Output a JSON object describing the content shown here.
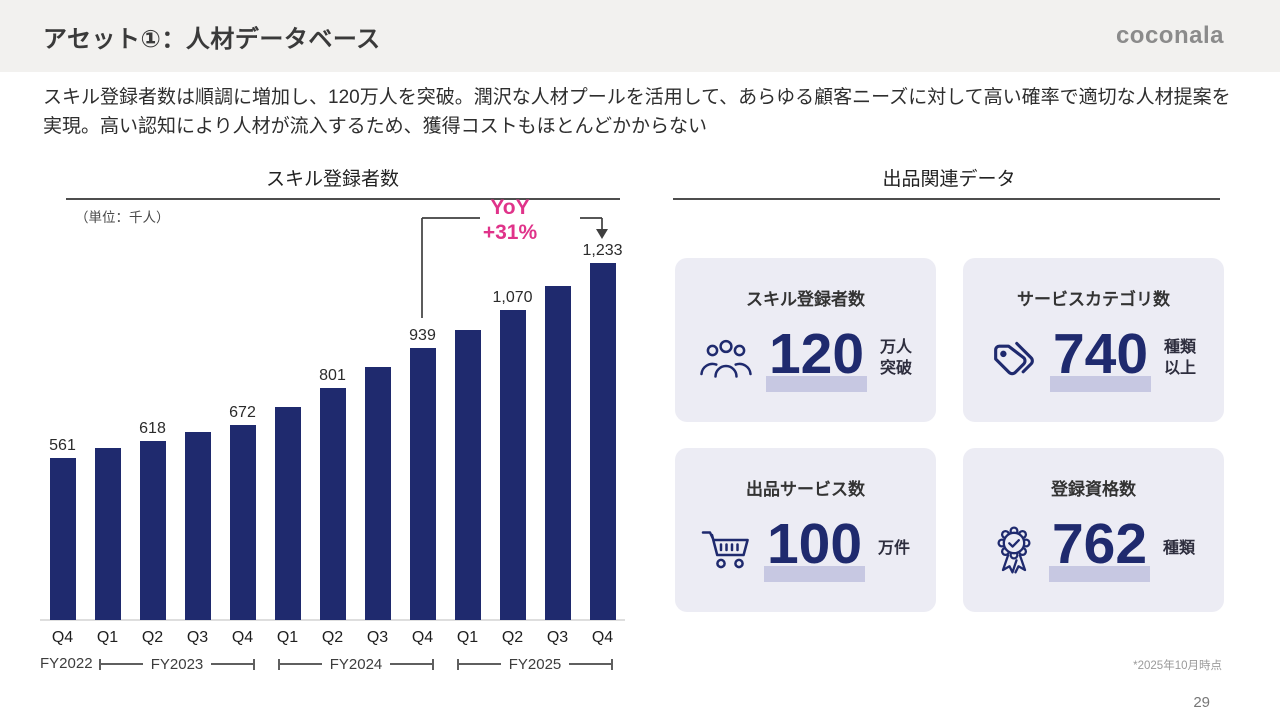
{
  "header": {
    "title": "アセット①：人材データベース",
    "logo": "coconala"
  },
  "intro": "スキル登録者数は順調に増加し、120万人を突破。潤沢な人材プールを活用して、あらゆる顧客ニーズに対して高い確率で適切な人材提案を実現。高い認知により人材が流入するため、獲得コストもほとんどかからない",
  "chart_section": {
    "title": "スキル登録者数",
    "unit_note": "（単位：千人）",
    "yoy_label": "YoY",
    "yoy_value": "+31%"
  },
  "chart_data": {
    "type": "bar",
    "title": "スキル登録者数",
    "ylabel": "千人",
    "categories": [
      "Q4",
      "Q1",
      "Q2",
      "Q3",
      "Q4",
      "Q1",
      "Q2",
      "Q3",
      "Q4",
      "Q1",
      "Q2",
      "Q3",
      "Q4"
    ],
    "fiscal_years": [
      "FY2022",
      "FY2023",
      "FY2024",
      "FY2025"
    ],
    "values": [
      561,
      595,
      618,
      650,
      672,
      735,
      801,
      875,
      939,
      1000,
      1070,
      1155,
      1233
    ],
    "value_labels": [
      "561",
      null,
      "618",
      null,
      "672",
      null,
      "801",
      null,
      "939",
      null,
      "1,070",
      null,
      "1,233"
    ],
    "estimated_indices": [
      1,
      3,
      5,
      7,
      9,
      11
    ],
    "ylim": [
      0,
      1300
    ],
    "bar_color": "#1f2a6e",
    "annotation": {
      "label": "YoY",
      "value": "+31%",
      "from": "FY2024 Q4",
      "to": "FY2025 Q4",
      "color": "#e0338a"
    },
    "grid": false,
    "legend": false
  },
  "right_panel": {
    "title": "出品関連データ",
    "cards": [
      {
        "icon": "people-group-icon",
        "title": "スキル登録者数",
        "value": "120",
        "unit_lines": [
          "万人",
          "突破"
        ]
      },
      {
        "icon": "tags-icon",
        "title": "サービスカテゴリ数",
        "value": "740",
        "unit_lines": [
          "種類",
          "以上"
        ]
      },
      {
        "icon": "cart-icon",
        "title": "出品サービス数",
        "value": "100",
        "unit_lines": [
          "万件"
        ]
      },
      {
        "icon": "ribbon-badge-icon",
        "title": "登録資格数",
        "value": "762",
        "unit_lines": [
          "種類"
        ]
      }
    ]
  },
  "footer": {
    "note": "*2025年10月時点",
    "page_number": "29"
  },
  "colors": {
    "header_bg": "#f2f1ef",
    "bar": "#1f2a6e",
    "accent_pink": "#e0338a",
    "card_bg": "#ececf4",
    "number_highlight": "#c7c8e2"
  }
}
